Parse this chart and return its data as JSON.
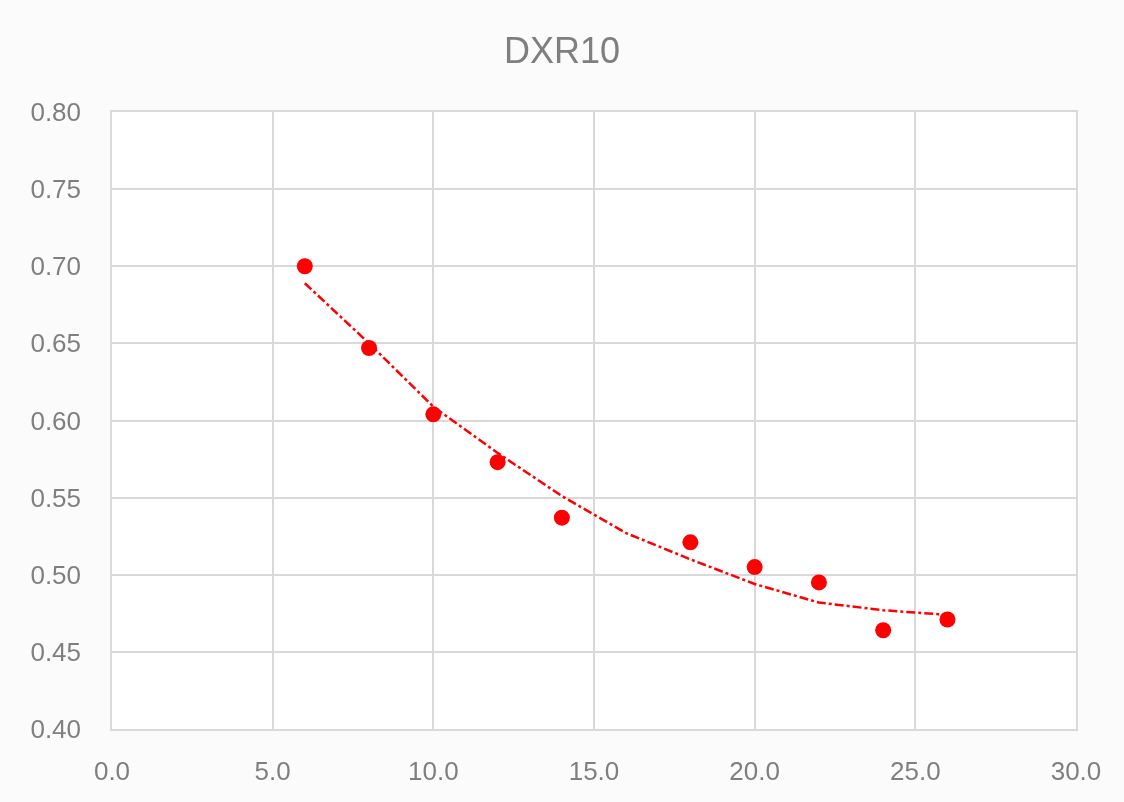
{
  "chart_data": {
    "type": "scatter",
    "title": "DXR10",
    "xlim": [
      0,
      30
    ],
    "xticks": [
      {
        "value": 0,
        "label": "0.0"
      },
      {
        "value": 5,
        "label": "5.0"
      },
      {
        "value": 10,
        "label": "10.0"
      },
      {
        "value": 15,
        "label": "15.0"
      },
      {
        "value": 20,
        "label": "20.0"
      },
      {
        "value": 25,
        "label": "25.0"
      },
      {
        "value": 30,
        "label": "30.0"
      }
    ],
    "ylim": [
      0.4,
      0.8
    ],
    "yticks": [
      {
        "value": 0.4,
        "label": "0.40"
      },
      {
        "value": 0.45,
        "label": "0.45"
      },
      {
        "value": 0.5,
        "label": "0.50"
      },
      {
        "value": 0.55,
        "label": "0.55"
      },
      {
        "value": 0.6,
        "label": "0.60"
      },
      {
        "value": 0.65,
        "label": "0.65"
      },
      {
        "value": 0.7,
        "label": "0.70"
      },
      {
        "value": 0.75,
        "label": "0.75"
      },
      {
        "value": 0.8,
        "label": "0.80"
      }
    ],
    "grid": true,
    "series": [
      {
        "color": "#ff0000",
        "marker": "circle",
        "x": [
          6,
          8,
          10,
          12,
          14,
          18,
          20,
          22,
          24,
          26
        ],
        "values": [
          0.7,
          0.647,
          0.604,
          0.573,
          0.537,
          0.521,
          0.505,
          0.495,
          0.464,
          0.471
        ]
      },
      {
        "type": "line",
        "color": "#ff0000",
        "line_style": "dashdot",
        "marker": "none",
        "x": [
          6,
          8,
          10,
          12,
          14,
          16,
          18,
          20,
          22,
          24,
          26
        ],
        "values": [
          0.689,
          0.65,
          0.609,
          0.579,
          0.551,
          0.527,
          0.51,
          0.494,
          0.482,
          0.477,
          0.474
        ]
      }
    ]
  }
}
